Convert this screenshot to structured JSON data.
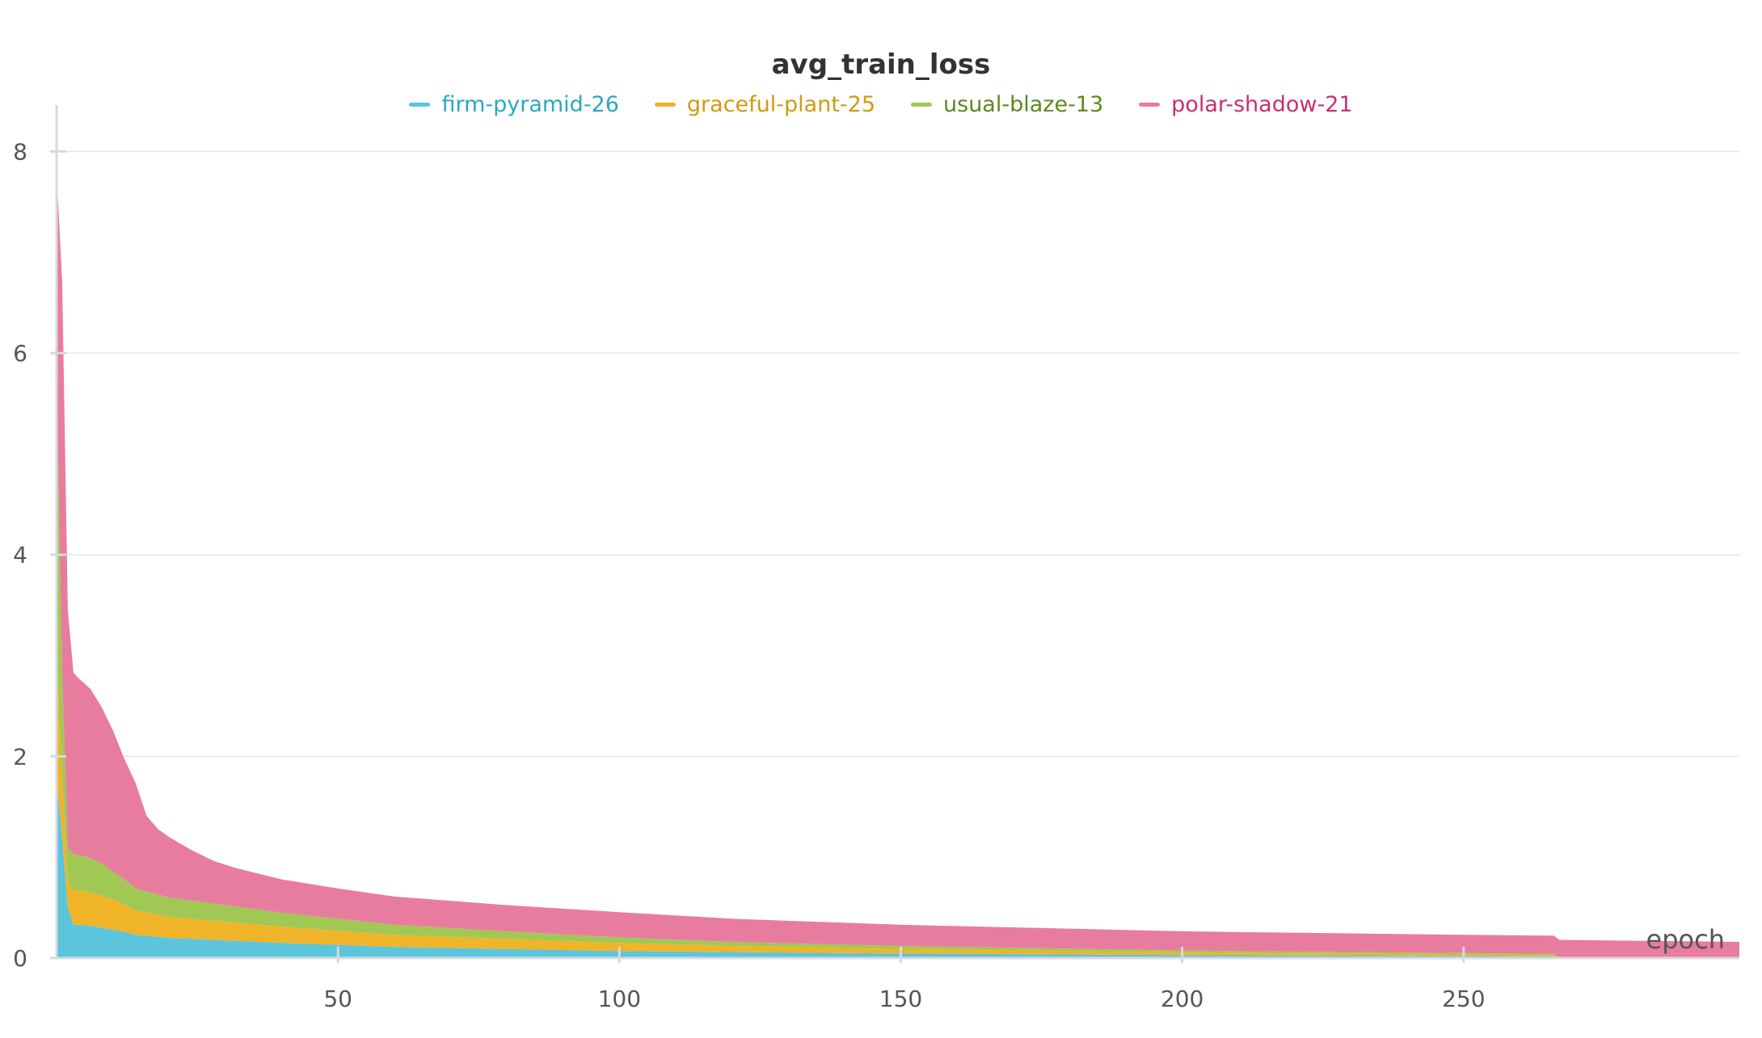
{
  "chart_data": {
    "type": "area",
    "stacked": true,
    "title": "avg_train_loss",
    "xlabel": "epoch",
    "ylabel": "",
    "xlim": [
      0,
      299
    ],
    "ylim": [
      0,
      8.3
    ],
    "xticks": [
      50,
      100,
      150,
      200,
      250
    ],
    "yticks": [
      0,
      2,
      4,
      6,
      8
    ],
    "grid": true,
    "legend_position": "top-center",
    "x": [
      0,
      1,
      2,
      3,
      4,
      6,
      8,
      10,
      12,
      14,
      16,
      18,
      20,
      24,
      28,
      32,
      40,
      50,
      60,
      80,
      100,
      120,
      150,
      200,
      250,
      266,
      267,
      299
    ],
    "series": [
      {
        "name": "firm-pyramid-26",
        "color": "#5bc5db",
        "text_color": "#2aa8c4",
        "values": [
          1.8,
          1.2,
          0.5,
          0.33,
          0.33,
          0.32,
          0.3,
          0.28,
          0.26,
          0.23,
          0.22,
          0.21,
          0.2,
          0.19,
          0.18,
          0.17,
          0.15,
          0.13,
          0.11,
          0.09,
          0.07,
          0.06,
          0.045,
          0.03,
          0.02,
          0.018,
          0,
          0
        ]
      },
      {
        "name": "graceful-plant-25",
        "color": "#f0b429",
        "text_color": "#d19b0e",
        "values": [
          1.2,
          0.6,
          0.25,
          0.34,
          0.34,
          0.33,
          0.32,
          0.3,
          0.27,
          0.24,
          0.23,
          0.22,
          0.21,
          0.2,
          0.19,
          0.18,
          0.16,
          0.14,
          0.12,
          0.1,
          0.08,
          0.06,
          0.045,
          0.025,
          0.015,
          0.012,
          0,
          0
        ]
      },
      {
        "name": "usual-blaze-13",
        "color": "#a1c854",
        "text_color": "#5a8a1c",
        "values": [
          2.8,
          1.0,
          0.35,
          0.36,
          0.35,
          0.34,
          0.32,
          0.28,
          0.25,
          0.22,
          0.21,
          0.2,
          0.19,
          0.18,
          0.17,
          0.16,
          0.14,
          0.12,
          0.1,
          0.075,
          0.055,
          0.04,
          0.03,
          0.02,
          0.015,
          0.012,
          0,
          0
        ]
      },
      {
        "name": "polar-shadow-21",
        "color": "#e87c9f",
        "text_color": "#c9306a",
        "values": [
          2.0,
          3.9,
          2.35,
          1.8,
          1.75,
          1.68,
          1.55,
          1.4,
          1.2,
          1.05,
          0.75,
          0.65,
          0.6,
          0.5,
          0.42,
          0.38,
          0.33,
          0.3,
          0.28,
          0.26,
          0.25,
          0.23,
          0.21,
          0.19,
          0.18,
          0.18,
          0.18,
          0.16
        ]
      }
    ]
  }
}
